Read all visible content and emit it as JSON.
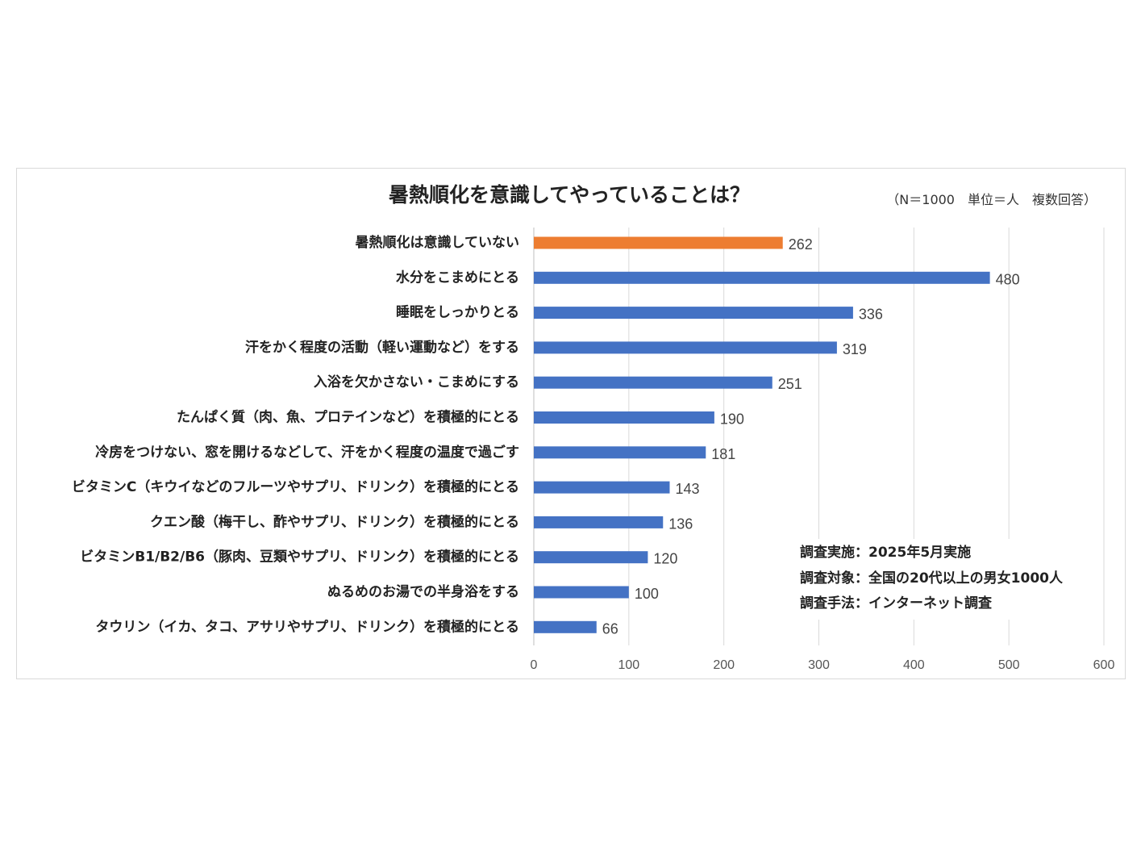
{
  "chart_data": {
    "type": "bar",
    "orientation": "horizontal",
    "title": "暑熱順化を意識してやっていることは？",
    "subtitle": "（N＝1000　単位＝人　複数回答）",
    "categories": [
      "暑熱順化は意識していない",
      "水分をこまめにとる",
      "睡眠をしっかりとる",
      "汗をかく程度の活動（軽い運動など）をする",
      "入浴を欠かさない・こまめにする",
      "たんぱく質（肉、魚、プロテインなど）を積極的にとる",
      "冷房をつけない、窓を開けるなどして、汗をかく程度の温度で過ごす",
      "ビタミンC（キウイなどのフルーツやサプリ、ドリンク）を積極的にとる",
      "クエン酸（梅干し、酢やサプリ、ドリンク）を積極的にとる",
      "ビタミンB1/B2/B6（豚肉、豆類やサプリ、ドリンク）を積極的にとる",
      "ぬるめのお湯での半身浴をする",
      "タウリン（イカ、タコ、アサリやサプリ、ドリンク）を積極的にとる"
    ],
    "values": [
      262,
      480,
      336,
      319,
      251,
      190,
      181,
      143,
      136,
      120,
      100,
      66
    ],
    "colors": [
      "#ED7D31",
      "#4472C4",
      "#4472C4",
      "#4472C4",
      "#4472C4",
      "#4472C4",
      "#4472C4",
      "#4472C4",
      "#4472C4",
      "#4472C4",
      "#4472C4",
      "#4472C4"
    ],
    "xlim": [
      0,
      600
    ],
    "xticks": [
      "0",
      "100",
      "200",
      "300",
      "400",
      "500",
      "600"
    ],
    "xlabel": "",
    "ylabel": "",
    "grid": true,
    "annotations": [
      "調査実施：2025年5月実施",
      "調査対象：全国の20代以上の男女1000人",
      "調査手法：インターネット調査"
    ]
  }
}
